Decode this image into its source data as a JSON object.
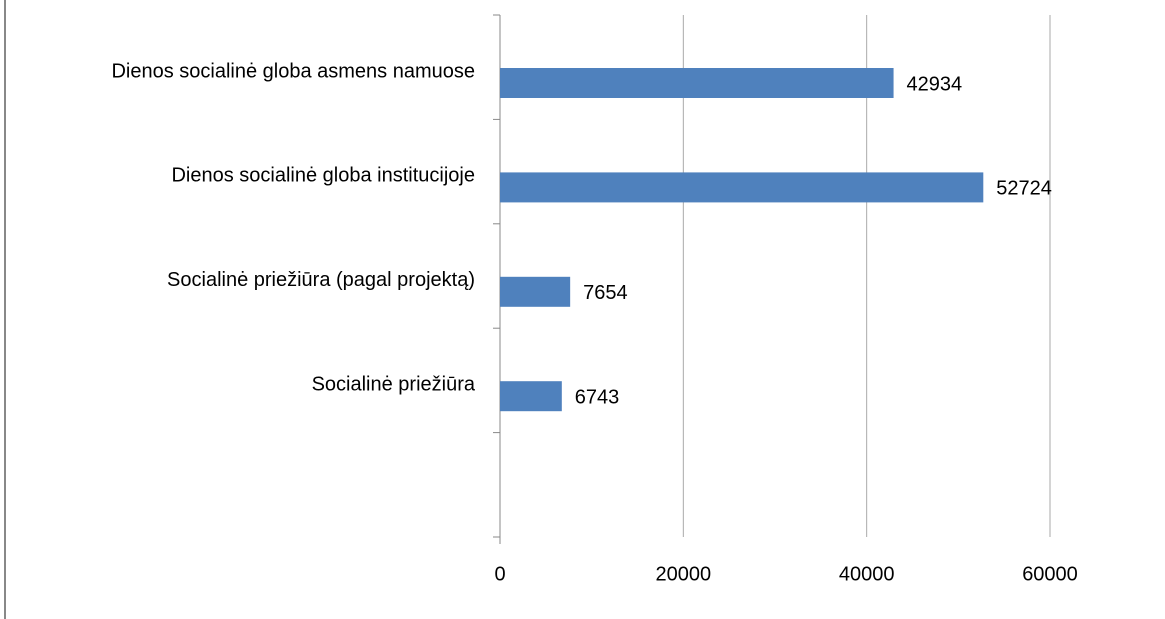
{
  "chart_data": {
    "type": "bar",
    "orientation": "horizontal",
    "categories": [
      "Dienos socialinė globa asmens namuose",
      "Dienos socialinė globa institucijoje",
      "Socialinė priežiūra (pagal projektą)",
      "Socialinė priežiūra",
      null
    ],
    "values": [
      42934,
      52724,
      7654,
      6743,
      null
    ],
    "color": "#4f81bd",
    "xlim": [
      0,
      60000
    ],
    "xticks": [
      0,
      20000,
      40000,
      60000
    ],
    "grid": true
  }
}
